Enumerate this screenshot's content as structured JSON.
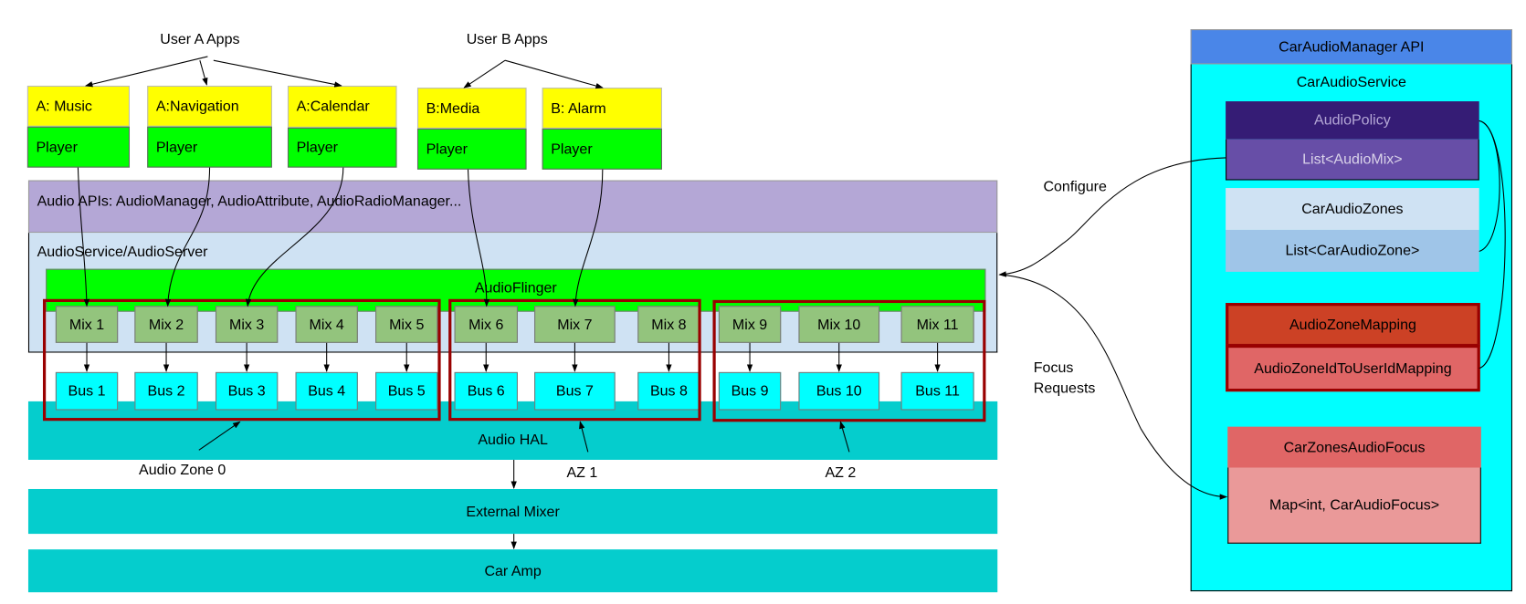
{
  "user_groups": {
    "a": "User A Apps",
    "b": "User B Apps"
  },
  "apps": [
    {
      "name": "A: Music",
      "player": "Player"
    },
    {
      "name": "A:Navigation",
      "player": "Player"
    },
    {
      "name": "A:Calendar",
      "player": "Player"
    },
    {
      "name": "B:Media",
      "player": "Player"
    },
    {
      "name": "B: Alarm",
      "player": "Player"
    }
  ],
  "layers": {
    "audio_apis": "Audio APIs: AudioManager, AudioAttribute, AudioRadioManager...",
    "audio_service": "AudioService/AudioServer",
    "audio_flinger": "AudioFlinger",
    "audio_hal": "Audio HAL",
    "external_mixer": "External Mixer",
    "car_amp": "Car Amp"
  },
  "mixes": [
    "Mix 1",
    "Mix 2",
    "Mix 3",
    "Mix 4",
    "Mix 5",
    "Mix 6",
    "Mix 7",
    "Mix 8",
    "Mix 9",
    "Mix 10",
    "Mix 11"
  ],
  "buses": [
    "Bus 1",
    "Bus 2",
    "Bus 3",
    "Bus 4",
    "Bus 5",
    "Bus 6",
    "Bus 7",
    "Bus 8",
    "Bus 9",
    "Bus 10",
    "Bus 11"
  ],
  "zones": [
    "Audio Zone 0",
    "AZ 1",
    "AZ 2"
  ],
  "edge_labels": {
    "configure": "Configure",
    "focus_line1": "Focus",
    "focus_line2": "Requests"
  },
  "car_audio": {
    "api": "CarAudioManager API",
    "service": "CarAudioService",
    "audio_policy": "AudioPolicy",
    "audio_mix_list": "List<AudioMix>",
    "zones": "CarAudioZones",
    "zone_list": "List<CarAudioZone>",
    "zone_mapping": "AudioZoneMapping",
    "zone_user_mapping": "AudioZoneIdToUserIdMapping",
    "focus": "CarZonesAudioFocus",
    "focus_map": "Map<int, CarAudioFocus>"
  },
  "colors": {
    "app": "#ffff00",
    "player": "#00ff00",
    "apis": "#b4a7d6",
    "service": "#cfe2f3",
    "mix": "#93c47d",
    "bus": "#00ffff",
    "hal": "#05cdcd",
    "zone_border": "#990000",
    "api_header": "#4a86e8",
    "car_service": "#00ffff"
  }
}
